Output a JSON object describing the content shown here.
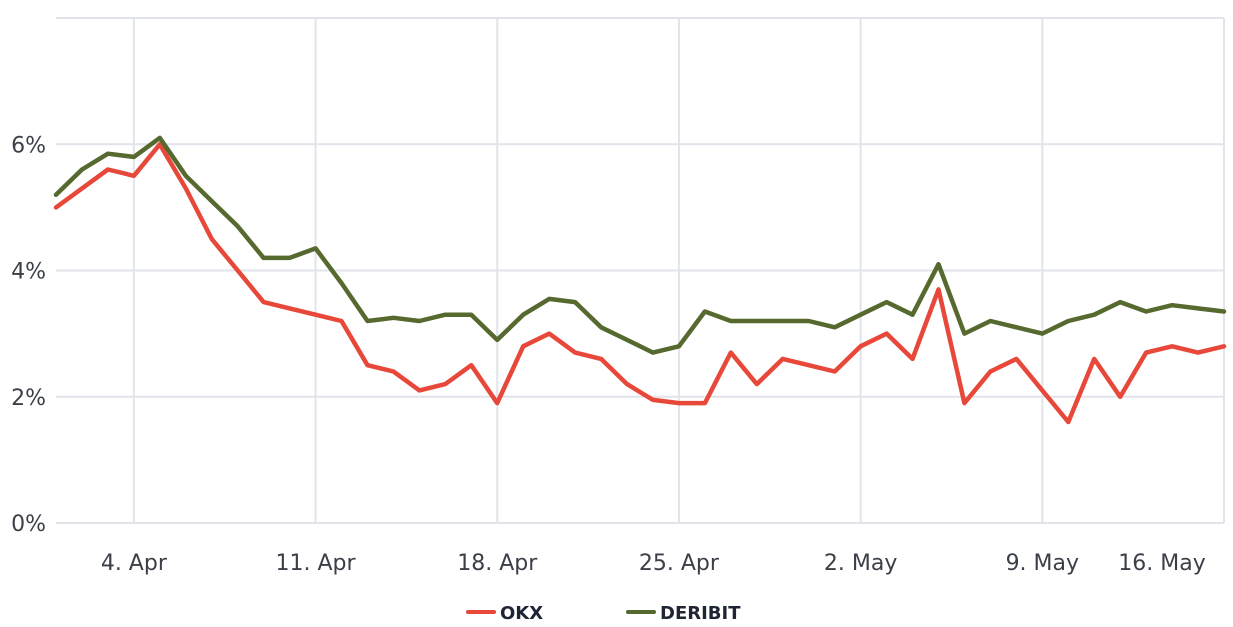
{
  "chart_data": {
    "type": "line",
    "title": "",
    "xlabel": "",
    "ylabel": "",
    "x_tick_labels": [
      "4. Apr",
      "11. Apr",
      "18. Apr",
      "25. Apr",
      "2. May",
      "9. May",
      "16. May"
    ],
    "x_tick_dates": [
      "2024-04-04",
      "2024-04-11",
      "2024-04-18",
      "2024-04-25",
      "2024-05-02",
      "2024-05-09",
      "2024-05-16"
    ],
    "y_tick_labels": [
      "0%",
      "2%",
      "4%",
      "6%"
    ],
    "y_ticks": [
      0,
      2,
      4,
      6
    ],
    "xlim": [
      "2024-04-01",
      "2024-05-16"
    ],
    "ylim": [
      0,
      8
    ],
    "grid": true,
    "legend_position": "bottom",
    "series": [
      {
        "name": "OKX",
        "color": "#e8483a",
        "x": [
          "2024-04-01",
          "2024-04-02",
          "2024-04-03",
          "2024-04-04",
          "2024-04-05",
          "2024-04-06",
          "2024-04-07",
          "2024-04-08",
          "2024-04-09",
          "2024-04-10",
          "2024-04-11",
          "2024-04-12",
          "2024-04-13",
          "2024-04-14",
          "2024-04-15",
          "2024-04-16",
          "2024-04-17",
          "2024-04-18",
          "2024-04-19",
          "2024-04-20",
          "2024-04-21",
          "2024-04-22",
          "2024-04-23",
          "2024-04-24",
          "2024-04-25",
          "2024-04-26",
          "2024-04-27",
          "2024-04-28",
          "2024-04-29",
          "2024-04-30",
          "2024-05-01",
          "2024-05-02",
          "2024-05-03",
          "2024-05-04",
          "2024-05-05",
          "2024-05-06",
          "2024-05-07",
          "2024-05-08",
          "2024-05-09",
          "2024-05-10",
          "2024-05-11",
          "2024-05-12",
          "2024-05-13",
          "2024-05-14",
          "2024-05-15",
          "2024-05-16"
        ],
        "values": [
          5.0,
          5.3,
          5.6,
          5.5,
          6.0,
          5.3,
          4.5,
          4.0,
          3.5,
          3.4,
          3.3,
          3.2,
          2.5,
          2.4,
          2.1,
          2.2,
          2.5,
          1.9,
          2.8,
          3.0,
          2.7,
          2.6,
          2.2,
          1.95,
          1.9,
          1.9,
          2.7,
          2.2,
          2.6,
          2.5,
          2.4,
          2.8,
          3.0,
          2.6,
          3.7,
          1.9,
          2.4,
          2.6,
          2.1,
          1.6,
          2.6,
          2.0,
          2.7,
          2.8,
          2.7,
          2.8
        ]
      },
      {
        "name": "DERIBIT",
        "color": "#56692e",
        "x": [
          "2024-04-01",
          "2024-04-02",
          "2024-04-03",
          "2024-04-04",
          "2024-04-05",
          "2024-04-06",
          "2024-04-07",
          "2024-04-08",
          "2024-04-09",
          "2024-04-10",
          "2024-04-11",
          "2024-04-12",
          "2024-04-13",
          "2024-04-14",
          "2024-04-15",
          "2024-04-16",
          "2024-04-17",
          "2024-04-18",
          "2024-04-19",
          "2024-04-20",
          "2024-04-21",
          "2024-04-22",
          "2024-04-23",
          "2024-04-24",
          "2024-04-25",
          "2024-04-26",
          "2024-04-27",
          "2024-04-28",
          "2024-04-29",
          "2024-04-30",
          "2024-05-01",
          "2024-05-02",
          "2024-05-03",
          "2024-05-04",
          "2024-05-05",
          "2024-05-06",
          "2024-05-07",
          "2024-05-08",
          "2024-05-09",
          "2024-05-10",
          "2024-05-11",
          "2024-05-12",
          "2024-05-13",
          "2024-05-14",
          "2024-05-15",
          "2024-05-16"
        ],
        "values": [
          5.2,
          5.6,
          5.85,
          5.8,
          6.1,
          5.5,
          5.1,
          4.7,
          4.2,
          4.2,
          4.35,
          3.8,
          3.2,
          3.25,
          3.2,
          3.3,
          3.3,
          2.9,
          3.3,
          3.55,
          3.5,
          3.1,
          2.9,
          2.7,
          2.8,
          3.35,
          3.2,
          3.2,
          3.2,
          3.2,
          3.1,
          3.3,
          3.5,
          3.3,
          4.1,
          3.0,
          3.2,
          3.1,
          3.0,
          3.2,
          3.3,
          3.5,
          3.35,
          3.45,
          3.4,
          3.35
        ]
      }
    ]
  }
}
